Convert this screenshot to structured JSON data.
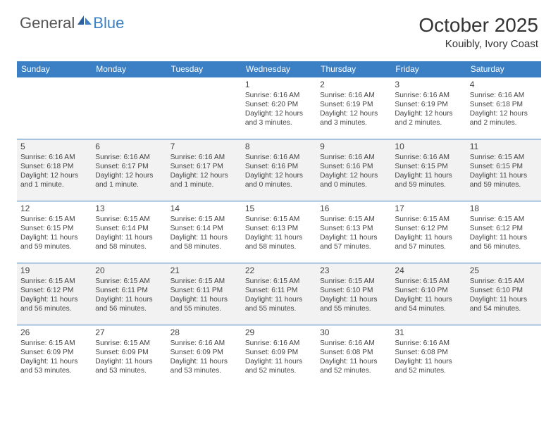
{
  "logo": {
    "text_general": "General",
    "text_blue": "Blue"
  },
  "title": "October 2025",
  "location": "Kouibly, Ivory Coast",
  "colors": {
    "header_bg": "#3b7fc4",
    "header_text": "#ffffff",
    "row_alt_bg": "#f2f2f2",
    "border": "#3b7fc4",
    "text": "#444444"
  },
  "day_headers": [
    "Sunday",
    "Monday",
    "Tuesday",
    "Wednesday",
    "Thursday",
    "Friday",
    "Saturday"
  ],
  "weeks": [
    [
      null,
      null,
      null,
      {
        "d": "1",
        "sr": "Sunrise: 6:16 AM",
        "ss": "Sunset: 6:20 PM",
        "dl": "Daylight: 12 hours and 3 minutes."
      },
      {
        "d": "2",
        "sr": "Sunrise: 6:16 AM",
        "ss": "Sunset: 6:19 PM",
        "dl": "Daylight: 12 hours and 3 minutes."
      },
      {
        "d": "3",
        "sr": "Sunrise: 6:16 AM",
        "ss": "Sunset: 6:19 PM",
        "dl": "Daylight: 12 hours and 2 minutes."
      },
      {
        "d": "4",
        "sr": "Sunrise: 6:16 AM",
        "ss": "Sunset: 6:18 PM",
        "dl": "Daylight: 12 hours and 2 minutes."
      }
    ],
    [
      {
        "d": "5",
        "sr": "Sunrise: 6:16 AM",
        "ss": "Sunset: 6:18 PM",
        "dl": "Daylight: 12 hours and 1 minute."
      },
      {
        "d": "6",
        "sr": "Sunrise: 6:16 AM",
        "ss": "Sunset: 6:17 PM",
        "dl": "Daylight: 12 hours and 1 minute."
      },
      {
        "d": "7",
        "sr": "Sunrise: 6:16 AM",
        "ss": "Sunset: 6:17 PM",
        "dl": "Daylight: 12 hours and 1 minute."
      },
      {
        "d": "8",
        "sr": "Sunrise: 6:16 AM",
        "ss": "Sunset: 6:16 PM",
        "dl": "Daylight: 12 hours and 0 minutes."
      },
      {
        "d": "9",
        "sr": "Sunrise: 6:16 AM",
        "ss": "Sunset: 6:16 PM",
        "dl": "Daylight: 12 hours and 0 minutes."
      },
      {
        "d": "10",
        "sr": "Sunrise: 6:16 AM",
        "ss": "Sunset: 6:15 PM",
        "dl": "Daylight: 11 hours and 59 minutes."
      },
      {
        "d": "11",
        "sr": "Sunrise: 6:15 AM",
        "ss": "Sunset: 6:15 PM",
        "dl": "Daylight: 11 hours and 59 minutes."
      }
    ],
    [
      {
        "d": "12",
        "sr": "Sunrise: 6:15 AM",
        "ss": "Sunset: 6:15 PM",
        "dl": "Daylight: 11 hours and 59 minutes."
      },
      {
        "d": "13",
        "sr": "Sunrise: 6:15 AM",
        "ss": "Sunset: 6:14 PM",
        "dl": "Daylight: 11 hours and 58 minutes."
      },
      {
        "d": "14",
        "sr": "Sunrise: 6:15 AM",
        "ss": "Sunset: 6:14 PM",
        "dl": "Daylight: 11 hours and 58 minutes."
      },
      {
        "d": "15",
        "sr": "Sunrise: 6:15 AM",
        "ss": "Sunset: 6:13 PM",
        "dl": "Daylight: 11 hours and 58 minutes."
      },
      {
        "d": "16",
        "sr": "Sunrise: 6:15 AM",
        "ss": "Sunset: 6:13 PM",
        "dl": "Daylight: 11 hours and 57 minutes."
      },
      {
        "d": "17",
        "sr": "Sunrise: 6:15 AM",
        "ss": "Sunset: 6:12 PM",
        "dl": "Daylight: 11 hours and 57 minutes."
      },
      {
        "d": "18",
        "sr": "Sunrise: 6:15 AM",
        "ss": "Sunset: 6:12 PM",
        "dl": "Daylight: 11 hours and 56 minutes."
      }
    ],
    [
      {
        "d": "19",
        "sr": "Sunrise: 6:15 AM",
        "ss": "Sunset: 6:12 PM",
        "dl": "Daylight: 11 hours and 56 minutes."
      },
      {
        "d": "20",
        "sr": "Sunrise: 6:15 AM",
        "ss": "Sunset: 6:11 PM",
        "dl": "Daylight: 11 hours and 56 minutes."
      },
      {
        "d": "21",
        "sr": "Sunrise: 6:15 AM",
        "ss": "Sunset: 6:11 PM",
        "dl": "Daylight: 11 hours and 55 minutes."
      },
      {
        "d": "22",
        "sr": "Sunrise: 6:15 AM",
        "ss": "Sunset: 6:11 PM",
        "dl": "Daylight: 11 hours and 55 minutes."
      },
      {
        "d": "23",
        "sr": "Sunrise: 6:15 AM",
        "ss": "Sunset: 6:10 PM",
        "dl": "Daylight: 11 hours and 55 minutes."
      },
      {
        "d": "24",
        "sr": "Sunrise: 6:15 AM",
        "ss": "Sunset: 6:10 PM",
        "dl": "Daylight: 11 hours and 54 minutes."
      },
      {
        "d": "25",
        "sr": "Sunrise: 6:15 AM",
        "ss": "Sunset: 6:10 PM",
        "dl": "Daylight: 11 hours and 54 minutes."
      }
    ],
    [
      {
        "d": "26",
        "sr": "Sunrise: 6:15 AM",
        "ss": "Sunset: 6:09 PM",
        "dl": "Daylight: 11 hours and 53 minutes."
      },
      {
        "d": "27",
        "sr": "Sunrise: 6:15 AM",
        "ss": "Sunset: 6:09 PM",
        "dl": "Daylight: 11 hours and 53 minutes."
      },
      {
        "d": "28",
        "sr": "Sunrise: 6:16 AM",
        "ss": "Sunset: 6:09 PM",
        "dl": "Daylight: 11 hours and 53 minutes."
      },
      {
        "d": "29",
        "sr": "Sunrise: 6:16 AM",
        "ss": "Sunset: 6:09 PM",
        "dl": "Daylight: 11 hours and 52 minutes."
      },
      {
        "d": "30",
        "sr": "Sunrise: 6:16 AM",
        "ss": "Sunset: 6:08 PM",
        "dl": "Daylight: 11 hours and 52 minutes."
      },
      {
        "d": "31",
        "sr": "Sunrise: 6:16 AM",
        "ss": "Sunset: 6:08 PM",
        "dl": "Daylight: 11 hours and 52 minutes."
      },
      null
    ]
  ]
}
